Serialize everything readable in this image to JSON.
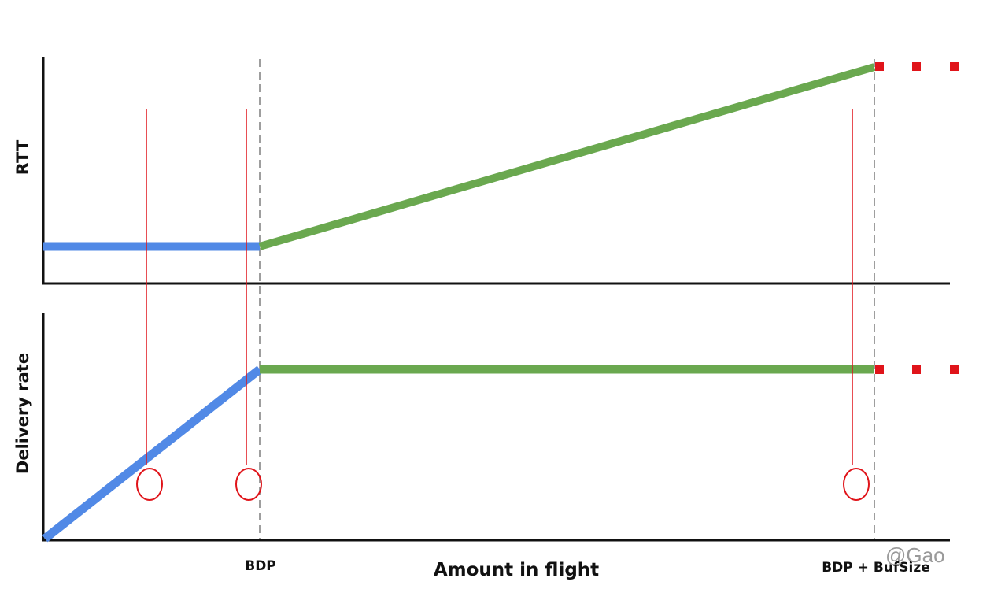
{
  "labels": {
    "top_y_axis": "RTT",
    "bottom_y_axis": "Delivery rate",
    "x_axis": "Amount in flight",
    "tick_bdp": "BDP",
    "tick_bdp_bufsize": "BDP + BufSize",
    "watermark": "@Gao"
  },
  "colors": {
    "app_limited": "#5189e6",
    "bandwidth_limited": "#6aa84f",
    "buffer_limited": "#e0141a",
    "markers": "#e0141a",
    "axes": "#111111",
    "guides": "#9e9e9e"
  },
  "chart_data": [
    {
      "type": "line",
      "panel": "top",
      "ylabel": "RTT",
      "x_ticks": [
        "BDP",
        "BDP + BufSize"
      ],
      "series": [
        {
          "segment": "app-limited",
          "color": "#5189e6",
          "x": [
            0,
            1
          ],
          "y": [
            0.2,
            0.2
          ]
        },
        {
          "segment": "bandwidth-limited",
          "color": "#6aa84f",
          "x": [
            1,
            3.84
          ],
          "y": [
            0.2,
            1.0
          ]
        },
        {
          "segment": "buffer-limited",
          "color": "#e0141a",
          "style": "dotted",
          "x": [
            3.84,
            4.2
          ],
          "y": [
            1.0,
            1.0
          ]
        }
      ]
    },
    {
      "type": "line",
      "panel": "bottom",
      "ylabel": "Delivery rate",
      "xlabel": "Amount in flight",
      "x_ticks": [
        "BDP",
        "BDP + BufSize"
      ],
      "series": [
        {
          "segment": "app-limited",
          "color": "#5189e6",
          "x": [
            0,
            1
          ],
          "y": [
            0,
            1
          ]
        },
        {
          "segment": "bandwidth-limited",
          "color": "#6aa84f",
          "x": [
            1,
            3.84
          ],
          "y": [
            1,
            1
          ]
        },
        {
          "segment": "buffer-limited",
          "color": "#e0141a",
          "style": "dotted",
          "x": [
            3.84,
            4.2
          ],
          "y": [
            1,
            1
          ]
        }
      ]
    }
  ]
}
